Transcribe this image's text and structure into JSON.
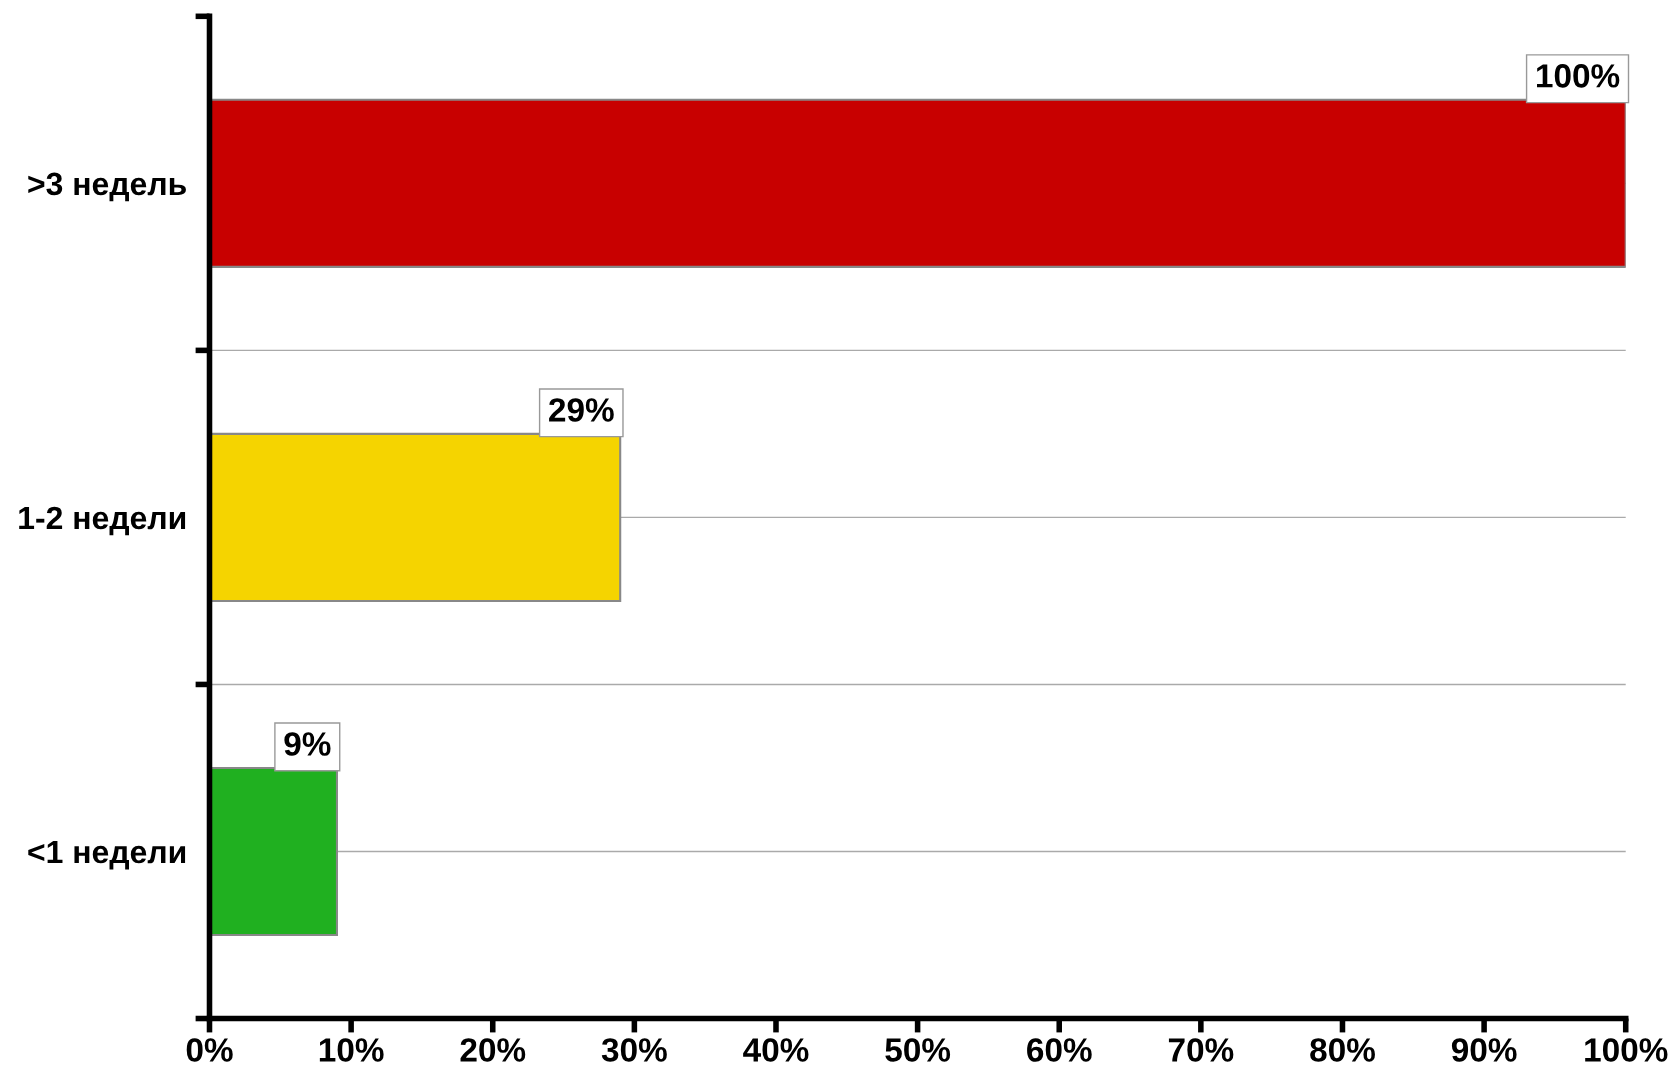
{
  "chart_data": {
    "type": "bar",
    "orientation": "horizontal",
    "categories": [
      ">3 недель",
      "1-2 недели",
      "<1 недели"
    ],
    "values": [
      100,
      29,
      9
    ],
    "colors": [
      "#c80000",
      "#f5d400",
      "#20b020"
    ],
    "value_labels": [
      "100%",
      "29%",
      "9%"
    ],
    "xlim": [
      0,
      100
    ],
    "xticks": [
      {
        "value": 0,
        "label": "0%"
      },
      {
        "value": 10,
        "label": "10%"
      },
      {
        "value": 20,
        "label": "20%"
      },
      {
        "value": 30,
        "label": "30%"
      },
      {
        "value": 40,
        "label": "40%"
      },
      {
        "value": 50,
        "label": "50%"
      },
      {
        "value": 60,
        "label": "60%"
      },
      {
        "value": 70,
        "label": "70%"
      },
      {
        "value": 80,
        "label": "80%"
      },
      {
        "value": 90,
        "label": "90%"
      },
      {
        "value": 100,
        "label": "100%"
      }
    ],
    "grid": "y"
  }
}
